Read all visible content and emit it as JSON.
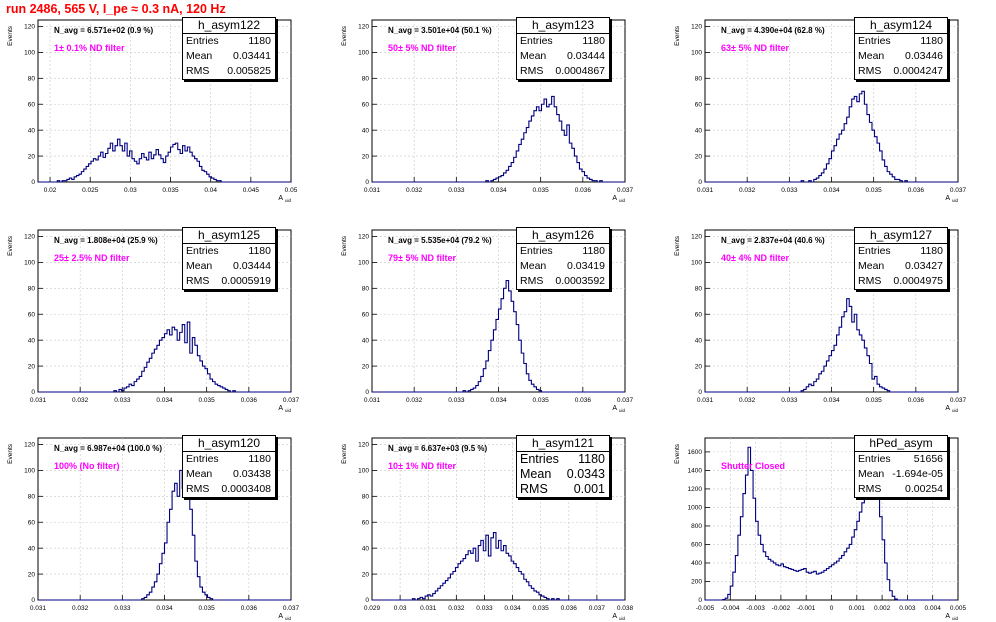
{
  "header": {
    "title": "run 2486,   565 V, I_pe ≈ 0.3 nA, 120 Hz"
  },
  "colors": {
    "histogram": "#000080",
    "filter_label": "#ff00ff",
    "title": "#ff0000",
    "grid": "#c8c8c8"
  },
  "chart_data": [
    {
      "type": "bar",
      "name": "h_asym122",
      "title": "N_avg = 6.571e+02 (0.9 %)",
      "annotation": "1± 0.1% ND filter",
      "stats": {
        "entries": "1180",
        "mean": "0.03441",
        "rms": "0.005825"
      },
      "xlabel": "A_uid",
      "ylabel": "Events",
      "xlim": [
        0.0185,
        0.05
      ],
      "ylim": [
        0,
        125
      ],
      "xticks": [
        "0.02",
        "0.025",
        "0.03",
        "0.035",
        "0.04",
        "0.045",
        "0.05"
      ],
      "yticks": [
        "0",
        "20",
        "40",
        "60",
        "80",
        "100",
        "120"
      ],
      "bin_start": 0.0185,
      "bin_width": 0.0003,
      "values": [
        0,
        0,
        0,
        0,
        0,
        0,
        0,
        0,
        1,
        0,
        1,
        1,
        2,
        3,
        2,
        4,
        5,
        6,
        8,
        10,
        12,
        14,
        16,
        18,
        17,
        20,
        23,
        19,
        22,
        26,
        30,
        24,
        28,
        33,
        28,
        24,
        30,
        20,
        24,
        18,
        16,
        14,
        18,
        22,
        19,
        17,
        23,
        18,
        21,
        25,
        21,
        18,
        15,
        20,
        23,
        27,
        29,
        30,
        25,
        22,
        28,
        24,
        27,
        23,
        20,
        18,
        16,
        12,
        9,
        8,
        6,
        4,
        3,
        2,
        1,
        1,
        0,
        0,
        0,
        0,
        0,
        0,
        0,
        0,
        0,
        0,
        0,
        0,
        0,
        0,
        0,
        0,
        0,
        0,
        0,
        0,
        0,
        0,
        0,
        0,
        0,
        0,
        0,
        0,
        0
      ]
    },
    {
      "type": "bar",
      "name": "h_asym123",
      "title": "N_avg = 3.501e+04 (50.1 %)",
      "annotation": "50± 5% ND filter",
      "stats": {
        "entries": "1180",
        "mean": "0.03444",
        "rms": "0.0004867"
      },
      "xlabel": "A_uid",
      "ylabel": "Events",
      "xlim": [
        0.031,
        0.037
      ],
      "ylim": [
        0,
        125
      ],
      "xticks": [
        "0.031",
        "0.032",
        "0.033",
        "0.034",
        "0.035",
        "0.036",
        "0.037"
      ],
      "yticks": [
        "0",
        "20",
        "40",
        "60",
        "80",
        "100",
        "120"
      ],
      "bin_start": 0.031,
      "bin_width": 6e-05,
      "values": [
        0,
        0,
        0,
        0,
        0,
        0,
        0,
        0,
        0,
        0,
        0,
        0,
        0,
        0,
        0,
        0,
        0,
        0,
        0,
        0,
        0,
        0,
        0,
        0,
        0,
        0,
        0,
        0,
        0,
        0,
        0,
        0,
        0,
        0,
        0,
        0,
        0,
        0,
        0,
        0,
        0,
        0,
        0,
        0,
        0,
        1,
        0,
        1,
        2,
        3,
        4,
        5,
        7,
        9,
        12,
        15,
        19,
        24,
        29,
        33,
        38,
        42,
        47,
        51,
        55,
        58,
        55,
        60,
        64,
        58,
        60,
        66,
        58,
        52,
        47,
        40,
        36,
        44,
        30,
        26,
        20,
        15,
        10,
        8,
        5,
        3,
        2,
        1,
        1,
        0,
        1,
        0,
        0,
        0,
        0,
        0,
        0,
        0,
        0,
        0
      ]
    },
    {
      "type": "bar",
      "name": "h_asym124",
      "title": "N_avg = 4.390e+04 (62.8 %)",
      "annotation": "63± 5% ND filter",
      "stats": {
        "entries": "1180",
        "mean": "0.03446",
        "rms": "0.0004247"
      },
      "xlabel": "A_uid",
      "ylabel": "Events",
      "xlim": [
        0.031,
        0.037
      ],
      "ylim": [
        0,
        125
      ],
      "xticks": [
        "0.031",
        "0.032",
        "0.033",
        "0.034",
        "0.035",
        "0.036",
        "0.037"
      ],
      "yticks": [
        "0",
        "20",
        "40",
        "60",
        "80",
        "100",
        "120"
      ],
      "bin_start": 0.031,
      "bin_width": 6e-05,
      "values": [
        0,
        0,
        0,
        0,
        0,
        0,
        0,
        0,
        0,
        0,
        0,
        0,
        0,
        0,
        0,
        0,
        0,
        0,
        0,
        0,
        0,
        0,
        0,
        0,
        0,
        0,
        0,
        0,
        0,
        0,
        0,
        0,
        0,
        0,
        0,
        0,
        0,
        0,
        1,
        0,
        0,
        1,
        0,
        2,
        3,
        5,
        7,
        10,
        14,
        18,
        24,
        28,
        33,
        37,
        40,
        45,
        50,
        58,
        64,
        66,
        62,
        68,
        70,
        60,
        52,
        46,
        40,
        35,
        30,
        24,
        17,
        12,
        8,
        6,
        4,
        2,
        2,
        1,
        0,
        1,
        0,
        0,
        0,
        0,
        0,
        0,
        0,
        0,
        0,
        0,
        0,
        0,
        0,
        0,
        0,
        0,
        0,
        0,
        0,
        0
      ]
    },
    {
      "type": "bar",
      "name": "h_asym125",
      "title": "N_avg = 1.808e+04 (25.9 %)",
      "annotation": "25± 2.5% ND filter",
      "stats": {
        "entries": "1180",
        "mean": "0.03444",
        "rms": "0.0005919"
      },
      "xlabel": "A_uid",
      "ylabel": "Events",
      "xlim": [
        0.031,
        0.037
      ],
      "ylim": [
        0,
        125
      ],
      "xticks": [
        "0.031",
        "0.032",
        "0.033",
        "0.034",
        "0.035",
        "0.036",
        "0.037"
      ],
      "yticks": [
        "0",
        "20",
        "40",
        "60",
        "80",
        "100",
        "120"
      ],
      "bin_start": 0.031,
      "bin_width": 6e-05,
      "values": [
        0,
        0,
        0,
        0,
        0,
        0,
        0,
        0,
        0,
        0,
        0,
        0,
        0,
        0,
        0,
        0,
        0,
        0,
        0,
        0,
        0,
        0,
        0,
        0,
        0,
        0,
        0,
        0,
        0,
        0,
        1,
        0,
        2,
        1,
        3,
        4,
        6,
        5,
        8,
        10,
        12,
        16,
        19,
        23,
        26,
        30,
        33,
        36,
        40,
        42,
        45,
        48,
        44,
        50,
        48,
        40,
        46,
        52,
        38,
        54,
        30,
        42,
        36,
        28,
        24,
        20,
        18,
        14,
        10,
        8,
        6,
        5,
        4,
        3,
        2,
        1,
        0,
        1,
        0,
        0,
        0,
        0,
        0,
        0,
        0,
        0,
        0,
        0,
        0,
        0,
        0,
        0,
        0,
        0,
        0,
        0,
        0,
        0,
        0,
        0
      ]
    },
    {
      "type": "bar",
      "name": "h_asym126",
      "title": "N_avg = 5.535e+04 (79.2 %)",
      "annotation": "79± 5% ND filter",
      "stats": {
        "entries": "1180",
        "mean": "0.03419",
        "rms": "0.0003592"
      },
      "xlabel": "A_uid",
      "ylabel": "Events",
      "xlim": [
        0.031,
        0.037
      ],
      "ylim": [
        0,
        125
      ],
      "xticks": [
        "0.031",
        "0.032",
        "0.033",
        "0.034",
        "0.035",
        "0.036",
        "0.037"
      ],
      "yticks": [
        "0",
        "20",
        "40",
        "60",
        "80",
        "100",
        "120"
      ],
      "bin_start": 0.031,
      "bin_width": 6e-05,
      "values": [
        0,
        0,
        0,
        0,
        0,
        0,
        0,
        0,
        0,
        0,
        0,
        0,
        0,
        0,
        0,
        0,
        0,
        0,
        0,
        0,
        0,
        0,
        0,
        0,
        0,
        0,
        0,
        0,
        0,
        0,
        0,
        0,
        0,
        0,
        0,
        0,
        1,
        0,
        1,
        2,
        3,
        5,
        8,
        12,
        18,
        24,
        32,
        40,
        48,
        56,
        64,
        72,
        80,
        86,
        78,
        70,
        62,
        52,
        40,
        30,
        22,
        14,
        9,
        6,
        4,
        2,
        1,
        0,
        0,
        0,
        0,
        0,
        0,
        0,
        0,
        0,
        0,
        0,
        0,
        0,
        0,
        0,
        0,
        0,
        0,
        0,
        0,
        0,
        0,
        0,
        0,
        0,
        0,
        0,
        0,
        0,
        0,
        0,
        0,
        0
      ]
    },
    {
      "type": "bar",
      "name": "h_asym127",
      "title": "N_avg = 2.837e+04 (40.6 %)",
      "annotation": "40± 4% ND filter",
      "stats": {
        "entries": "1180",
        "mean": "0.03427",
        "rms": "0.0004975"
      },
      "xlabel": "A_uid",
      "ylabel": "Events",
      "xlim": [
        0.031,
        0.037
      ],
      "ylim": [
        0,
        125
      ],
      "xticks": [
        "0.031",
        "0.032",
        "0.033",
        "0.034",
        "0.035",
        "0.036",
        "0.037"
      ],
      "yticks": [
        "0",
        "20",
        "40",
        "60",
        "80",
        "100",
        "120"
      ],
      "bin_start": 0.031,
      "bin_width": 6e-05,
      "values": [
        0,
        0,
        0,
        0,
        0,
        0,
        0,
        0,
        0,
        0,
        0,
        0,
        0,
        0,
        0,
        0,
        0,
        0,
        0,
        0,
        0,
        0,
        0,
        0,
        0,
        0,
        0,
        0,
        0,
        0,
        0,
        0,
        0,
        0,
        0,
        0,
        0,
        0,
        1,
        2,
        4,
        6,
        5,
        8,
        10,
        14,
        16,
        20,
        24,
        28,
        32,
        36,
        44,
        50,
        58,
        62,
        72,
        66,
        54,
        60,
        48,
        44,
        40,
        34,
        28,
        22,
        10,
        12,
        6,
        4,
        3,
        2,
        1,
        0,
        0,
        0,
        0,
        0,
        0,
        0,
        0,
        0,
        0,
        0,
        0,
        0,
        0,
        0,
        0,
        0,
        0,
        0,
        0,
        0,
        0,
        0,
        0,
        0,
        0,
        0
      ]
    },
    {
      "type": "bar",
      "name": "h_asym120",
      "title": "N_avg = 6.987e+04 (100.0 %)",
      "annotation": "100% (No filter)",
      "stats": {
        "entries": "1180",
        "mean": "0.03438",
        "rms": "0.0003408"
      },
      "xlabel": "A_uid",
      "ylabel": "Events",
      "xlim": [
        0.031,
        0.037
      ],
      "ylim": [
        0,
        125
      ],
      "xticks": [
        "0.031",
        "0.032",
        "0.033",
        "0.034",
        "0.035",
        "0.036",
        "0.037"
      ],
      "yticks": [
        "0",
        "20",
        "40",
        "60",
        "80",
        "100",
        "120"
      ],
      "bin_start": 0.031,
      "bin_width": 6e-05,
      "values": [
        0,
        0,
        0,
        0,
        0,
        0,
        0,
        0,
        0,
        0,
        0,
        0,
        0,
        0,
        0,
        0,
        0,
        0,
        0,
        0,
        0,
        0,
        0,
        0,
        0,
        0,
        0,
        0,
        0,
        0,
        0,
        0,
        0,
        0,
        0,
        0,
        0,
        0,
        0,
        0,
        0,
        1,
        2,
        4,
        6,
        10,
        14,
        20,
        28,
        36,
        44,
        60,
        70,
        84,
        90,
        80,
        100,
        86,
        116,
        96,
        70,
        50,
        30,
        18,
        10,
        6,
        4,
        2,
        1,
        0,
        0,
        0,
        0,
        0,
        0,
        0,
        0,
        0,
        0,
        0,
        0,
        0,
        0,
        0,
        0,
        0,
        0,
        0,
        0,
        0,
        0,
        0,
        0,
        0,
        0,
        0,
        0,
        0,
        0,
        0
      ]
    },
    {
      "type": "bar",
      "name": "h_asym121",
      "title": "N_avg = 6.637e+03 (9.5 %)",
      "annotation": "10± 1% ND filter",
      "stats": {
        "entries": "1180",
        "mean": "0.0343",
        "rms": "0.001"
      },
      "xlabel": "A_uid",
      "ylabel": "Events",
      "xlim": [
        0.029,
        0.038
      ],
      "ylim": [
        0,
        125
      ],
      "xticks": [
        "0.029",
        "0.03",
        "0.031",
        "0.032",
        "0.033",
        "0.034",
        "0.035",
        "0.036",
        "0.037",
        "0.038"
      ],
      "yticks": [
        "0",
        "20",
        "40",
        "60",
        "80",
        "100",
        "120"
      ],
      "bin_start": 0.029,
      "bin_width": 9e-05,
      "values": [
        0,
        0,
        0,
        0,
        0,
        0,
        0,
        0,
        0,
        0,
        0,
        0,
        0,
        0,
        0,
        0,
        1,
        0,
        1,
        2,
        1,
        3,
        4,
        3,
        5,
        7,
        9,
        11,
        13,
        15,
        17,
        20,
        22,
        25,
        28,
        30,
        32,
        35,
        38,
        36,
        40,
        30,
        42,
        46,
        38,
        50,
        34,
        48,
        52,
        40,
        46,
        38,
        42,
        36,
        34,
        30,
        28,
        25,
        22,
        20,
        16,
        14,
        11,
        9,
        7,
        6,
        4,
        3,
        2,
        1,
        0,
        1,
        0,
        1,
        0,
        0,
        0,
        0,
        0,
        0,
        0,
        0,
        0,
        0,
        0,
        0,
        0,
        0,
        0,
        0,
        0,
        0,
        0,
        0,
        0,
        0,
        0,
        0,
        0,
        0
      ]
    },
    {
      "type": "bar",
      "name": "hPed_asym",
      "title": "",
      "annotation": "Shutter Closed",
      "stats": {
        "entries": "51656",
        "mean": "-1.694e-05",
        "rms": "0.00254"
      },
      "xlabel": "A_uid",
      "ylabel": "Events",
      "xlim": [
        -0.005,
        0.005
      ],
      "ylim": [
        0,
        1750
      ],
      "xticks": [
        "-0.005",
        "-0.004",
        "-0.003",
        "-0.002",
        "-0.001",
        "0",
        "0.001",
        "0.002",
        "0.003",
        "0.004",
        "0.005"
      ],
      "yticks": [
        "0",
        "200",
        "400",
        "600",
        "800",
        "1000",
        "1200",
        "1400",
        "1600"
      ],
      "bin_start": -0.005,
      "bin_width": 0.0001,
      "values": [
        0,
        0,
        0,
        0,
        0,
        0,
        0,
        5,
        20,
        60,
        150,
        300,
        480,
        700,
        900,
        1150,
        1350,
        1650,
        1400,
        1100,
        850,
        700,
        600,
        520,
        470,
        440,
        420,
        400,
        380,
        370,
        390,
        360,
        350,
        340,
        330,
        320,
        310,
        320,
        330,
        340,
        300,
        290,
        300,
        310,
        280,
        290,
        300,
        320,
        340,
        360,
        380,
        400,
        420,
        450,
        480,
        520,
        560,
        600,
        680,
        760,
        850,
        950,
        1050,
        1150,
        1250,
        1300,
        1350,
        1250,
        1100,
        900,
        650,
        400,
        220,
        100,
        40,
        10,
        0,
        0,
        0,
        0,
        0,
        0,
        0,
        0,
        0,
        0,
        0,
        0,
        0,
        0,
        0,
        0,
        0,
        0,
        0,
        0,
        0,
        0,
        0
      ]
    }
  ]
}
